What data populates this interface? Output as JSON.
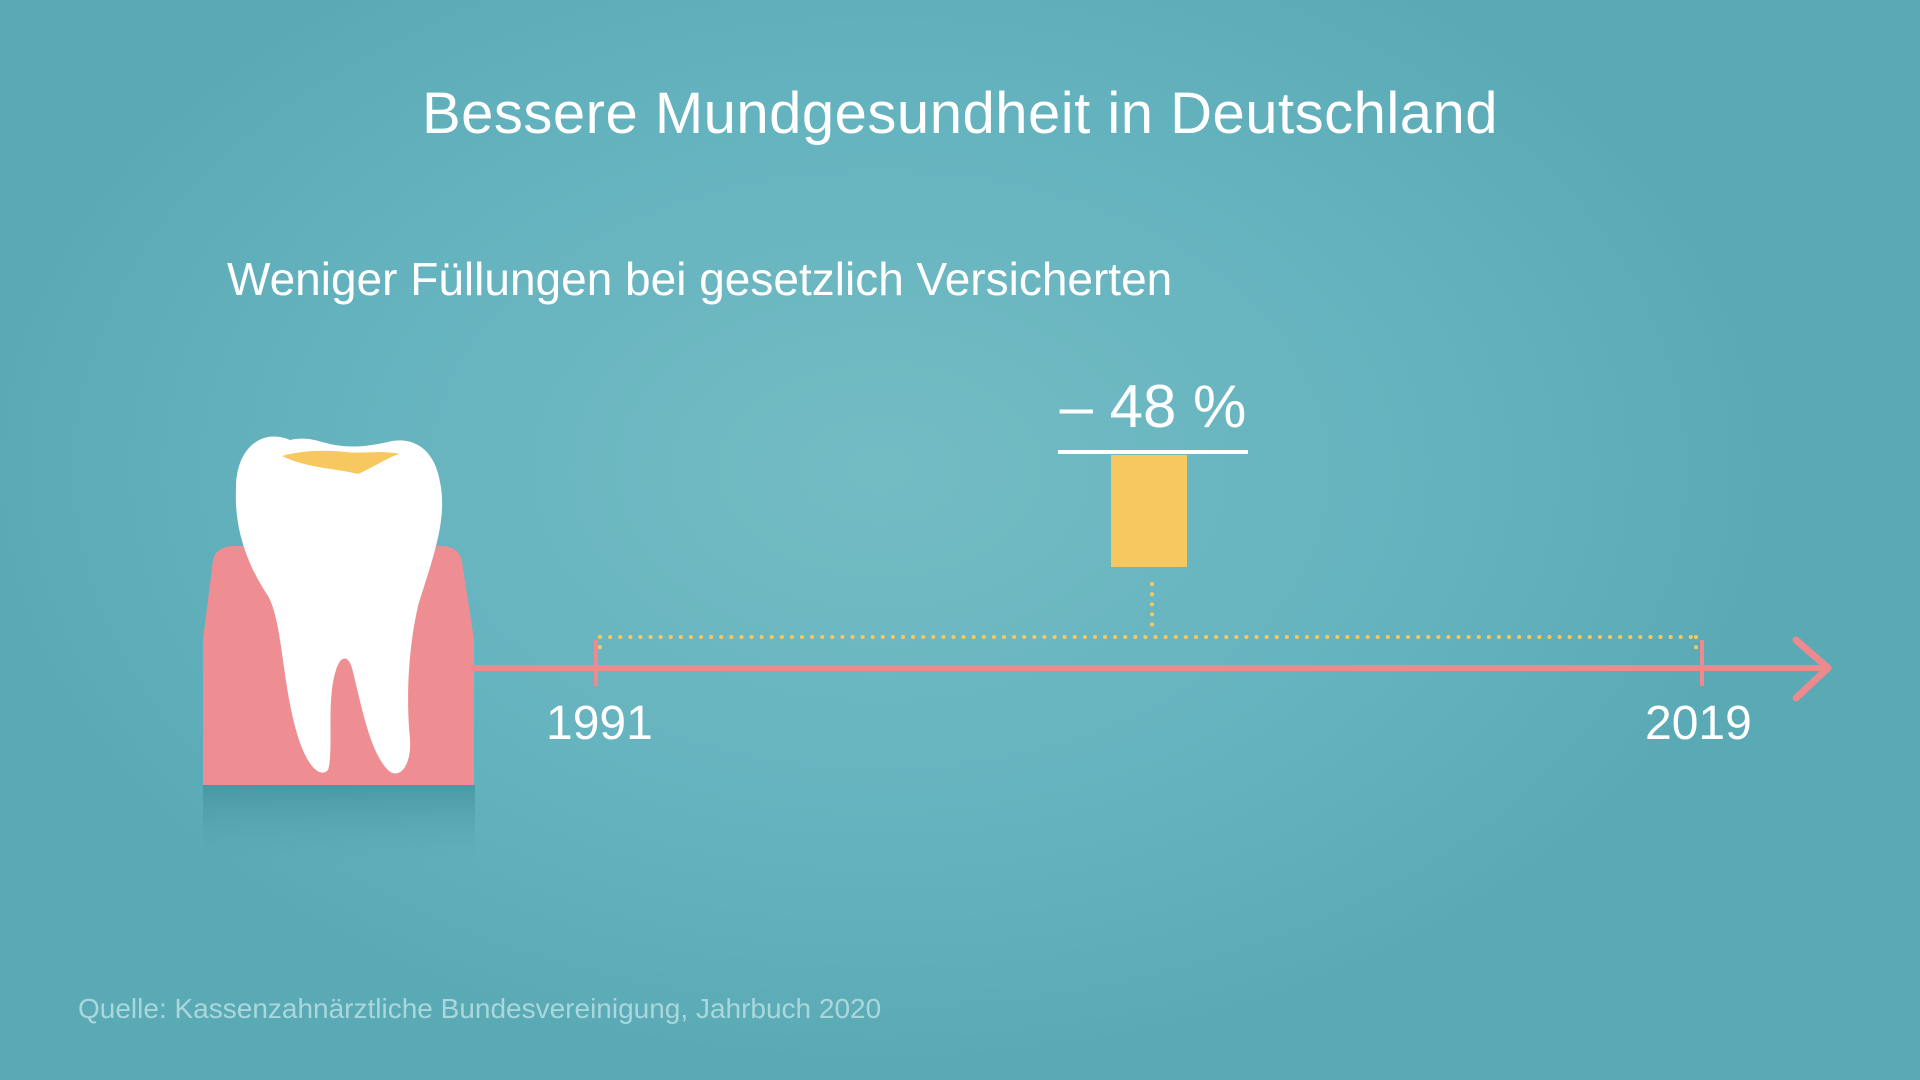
{
  "title": "Bessere Mundgesundheit in Deutschland",
  "subtitle": "Weniger Füllungen bei gesetzlich Versicherten",
  "change_label": "– 48 %",
  "change_percent": -48,
  "timeline": {
    "start_year": "1991",
    "end_year": "2019"
  },
  "source": "Quelle: Kassenzahnärztliche Bundesvereinigung, Jahrbuch 2020",
  "icons": [
    "tooth-icon",
    "gum-icon",
    "timeline-arrow-icon"
  ],
  "colors": {
    "background": "#66b4bf",
    "timeline": "#ec8a8e",
    "gum": "#ef8e92",
    "accent_bar": "#f7c860",
    "tooth": "#ffffff",
    "text": "#ffffff",
    "source_text": "#a9d7dc"
  }
}
